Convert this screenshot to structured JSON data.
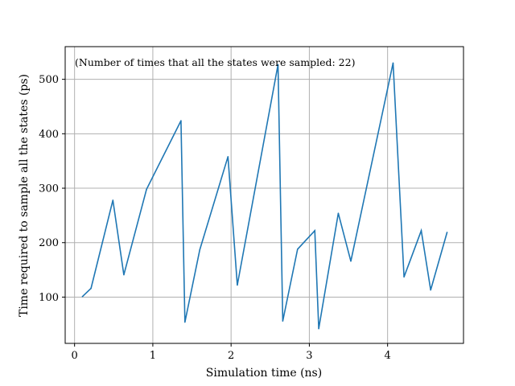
{
  "chart_data": {
    "type": "line",
    "annotation": "(Number of times that all the states were sampled: 22)",
    "xlabel": "Simulation time (ns)",
    "ylabel": "Time required to sample all the states (ps)",
    "xlim": [
      -0.12,
      4.97
    ],
    "ylim": [
      15,
      560
    ],
    "xticks": [
      0,
      1,
      2,
      3,
      4
    ],
    "yticks": [
      100,
      200,
      300,
      400,
      500
    ],
    "grid": true,
    "color": "#1f77b4",
    "series": [
      {
        "x": [
          0.1,
          0.21,
          0.49,
          0.63,
          0.92,
          1.36,
          1.41,
          1.6,
          1.96,
          2.08,
          2.6,
          2.66,
          2.85,
          3.07,
          3.12,
          3.37,
          3.53,
          4.07,
          4.21,
          4.43,
          4.55,
          4.76
        ],
        "y": [
          101,
          116,
          278,
          141,
          298,
          424,
          54,
          187,
          358,
          122,
          527,
          56,
          188,
          222,
          42,
          254,
          166,
          530,
          137,
          222,
          113,
          219
        ]
      }
    ]
  }
}
